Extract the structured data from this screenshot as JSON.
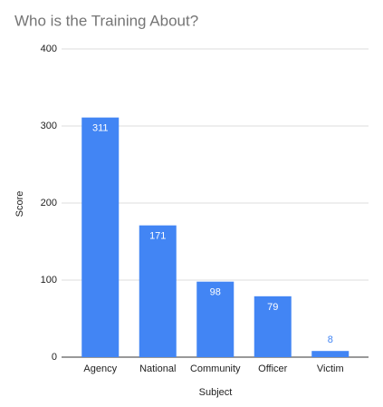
{
  "chart_data": {
    "type": "bar",
    "title": "Who is the Training About?",
    "x_label": "Subject",
    "y_label": "Score",
    "categories": [
      "Agency",
      "National",
      "Community",
      "Officer",
      "Victim"
    ],
    "values": [
      311,
      171,
      98,
      79,
      8
    ],
    "color": "#4285f4",
    "ylim": [
      0,
      400
    ],
    "yticks": [
      0,
      100,
      200,
      300,
      400
    ],
    "grid": true
  }
}
